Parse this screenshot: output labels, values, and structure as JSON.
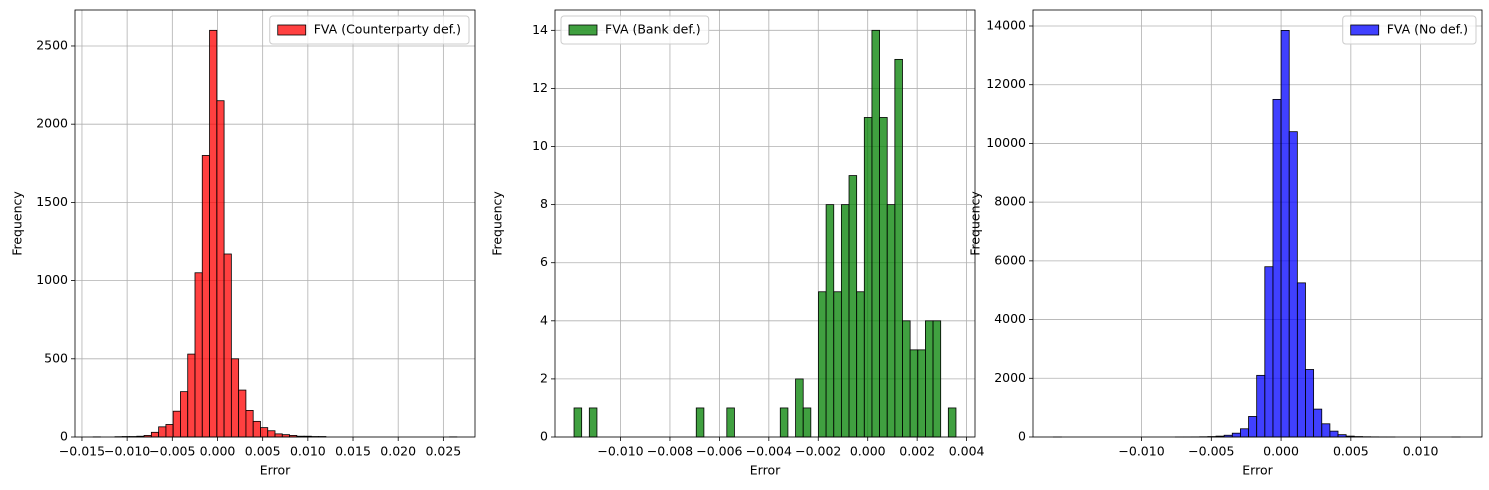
{
  "chart_data": [
    {
      "type": "histogram",
      "xlabel": "Error",
      "ylabel": "Frequency",
      "grid": true,
      "legend": "upper right",
      "bins": [
        -0.01376,
        -0.012955,
        -0.01215,
        -0.011345,
        -0.01054,
        -0.009735,
        -0.00893,
        -0.008125,
        -0.00732,
        -0.006515,
        -0.00571,
        -0.004905,
        -0.0041,
        -0.003295,
        -0.00249,
        -0.001685,
        -0.00088,
        -7.5e-05,
        0.00073,
        0.001535,
        0.00234,
        0.003145,
        0.00395,
        0.004755,
        0.00556,
        0.006365,
        0.00717,
        0.007975,
        0.00878,
        0.009585,
        0.01039,
        0.011195,
        0.012,
        0.012805,
        0.01361,
        0.014415,
        0.01522,
        0.016025,
        0.01683,
        0.017635,
        0.01844,
        0.019245,
        0.02005,
        0.020855,
        0.02166,
        0.022465,
        0.02327,
        0.024075,
        0.02488,
        0.025685,
        0.02649
      ],
      "series": [
        {
          "name": "FVA (Counterparty def.)",
          "color": "#ff0000",
          "values": [
            1,
            0,
            0,
            2,
            3,
            3,
            5,
            10,
            30,
            65,
            80,
            165,
            290,
            530,
            1050,
            1800,
            2600,
            2150,
            1170,
            500,
            300,
            170,
            100,
            60,
            40,
            20,
            15,
            10,
            5,
            5,
            3,
            3,
            0,
            0,
            0,
            0,
            0,
            0,
            0,
            0,
            0,
            0,
            0,
            0,
            0,
            0,
            0,
            0,
            0,
            1
          ]
        }
      ],
      "xlim": [
        -0.01577,
        0.0285
      ],
      "ylim": [
        0,
        2730
      ],
      "xticks": [
        {
          "value": -0.015,
          "label": "−0.015"
        },
        {
          "value": -0.01,
          "label": "−0.010"
        },
        {
          "value": -0.005,
          "label": "−0.005"
        },
        {
          "value": 0,
          "label": "0.000"
        },
        {
          "value": 0.005,
          "label": "0.005"
        },
        {
          "value": 0.01,
          "label": "0.010"
        },
        {
          "value": 0.015,
          "label": "0.015"
        },
        {
          "value": 0.02,
          "label": "0.020"
        },
        {
          "value": 0.025,
          "label": "0.025"
        }
      ],
      "yticks": [
        0,
        500,
        1000,
        1500,
        2000,
        2500
      ]
    },
    {
      "type": "histogram",
      "xlabel": "Error",
      "ylabel": "Frequency",
      "grid": true,
      "legend": "upper left",
      "bins": [
        -0.01188,
        -0.011571,
        -0.011262,
        -0.010953,
        -0.010644,
        -0.010335,
        -0.010026,
        -0.009717,
        -0.009408,
        -0.009099,
        -0.00879,
        -0.008481,
        -0.008172,
        -0.007863,
        -0.007554,
        -0.007245,
        -0.006936,
        -0.006627,
        -0.006318,
        -0.006009,
        -0.0057,
        -0.005391,
        -0.005082,
        -0.004773,
        -0.004464,
        -0.004155,
        -0.003846,
        -0.003537,
        -0.003228,
        -0.002919,
        -0.00261,
        -0.002301,
        -0.001992,
        -0.001683,
        -0.001374,
        -0.001065,
        -0.000756,
        -0.000447,
        -0.000138,
        0.000171,
        0.00048,
        0.000789,
        0.001098,
        0.001407,
        0.001716,
        0.002025,
        0.002334,
        0.002643,
        0.002952,
        0.003261,
        0.00357
      ],
      "series": [
        {
          "name": "FVA (Bank def.)",
          "color": "#008000",
          "values": [
            1,
            0,
            1,
            0,
            0,
            0,
            0,
            0,
            0,
            0,
            0,
            0,
            0,
            0,
            0,
            0,
            1,
            0,
            0,
            0,
            1,
            0,
            0,
            0,
            0,
            0,
            0,
            1,
            0,
            2,
            1,
            0,
            5,
            8,
            5,
            8,
            9,
            5,
            11,
            14,
            11,
            8,
            13,
            4,
            3,
            3,
            4,
            4,
            0,
            1
          ]
        }
      ],
      "xlim": [
        -0.01265,
        0.00434
      ],
      "ylim": [
        0,
        14.7
      ],
      "xticks": [
        {
          "value": -0.01,
          "label": "−0.010"
        },
        {
          "value": -0.008,
          "label": "−0.008"
        },
        {
          "value": -0.006,
          "label": "−0.006"
        },
        {
          "value": -0.004,
          "label": "−0.004"
        },
        {
          "value": -0.002,
          "label": "−0.002"
        },
        {
          "value": 0,
          "label": "0.000"
        },
        {
          "value": 0.002,
          "label": "0.002"
        },
        {
          "value": 0.004,
          "label": "0.004"
        }
      ],
      "yticks": [
        0,
        2,
        4,
        6,
        8,
        10,
        12,
        14
      ]
    },
    {
      "type": "histogram",
      "xlabel": "Error",
      "ylabel": "Frequency",
      "grid": true,
      "legend": "upper right",
      "bins": [
        -0.016324,
        -0.015741,
        -0.015158,
        -0.014575,
        -0.013992,
        -0.013409,
        -0.012826,
        -0.012243,
        -0.01166,
        -0.011077,
        -0.010494,
        -0.009911,
        -0.009328,
        -0.008745,
        -0.008162,
        -0.007579,
        -0.006996,
        -0.006413,
        -0.00583,
        -0.005247,
        -0.004664,
        -0.004081,
        -0.003498,
        -0.002915,
        -0.002332,
        -0.001749,
        -0.001166,
        -0.000583,
        0,
        0.000583,
        0.001166,
        0.001749,
        0.002332,
        0.002915,
        0.003498,
        0.004081,
        0.004664,
        0.005247,
        0.00583,
        0.006413,
        0.006996,
        0.007579,
        0.008162,
        0.008745,
        0.009328,
        0.009911,
        0.010494,
        0.011077,
        0.01166,
        0.012243,
        0.012826
      ],
      "series": [
        {
          "name": "FVA (No def.)",
          "color": "#0000ff",
          "values": [
            1,
            0,
            0,
            0,
            0,
            0,
            0,
            0,
            0,
            0,
            0,
            0,
            0,
            0,
            0,
            1,
            2,
            4,
            8,
            15,
            30,
            60,
            130,
            280,
            700,
            2100,
            5800,
            11500,
            13850,
            10400,
            5250,
            2300,
            950,
            450,
            200,
            80,
            30,
            15,
            8,
            5,
            2,
            1,
            0,
            0,
            0,
            0,
            0,
            0,
            0,
            1
          ]
        }
      ],
      "xlim": [
        -0.01778,
        0.0144
      ],
      "ylim": [
        0,
        14545
      ],
      "xticks": [
        {
          "value": -0.01,
          "label": "−0.010"
        },
        {
          "value": -0.005,
          "label": "−0.005"
        },
        {
          "value": 0,
          "label": "0.000"
        },
        {
          "value": 0.005,
          "label": "0.005"
        },
        {
          "value": 0.01,
          "label": "0.010"
        }
      ],
      "yticks": [
        0,
        2000,
        4000,
        6000,
        8000,
        10000,
        12000,
        14000
      ]
    }
  ]
}
